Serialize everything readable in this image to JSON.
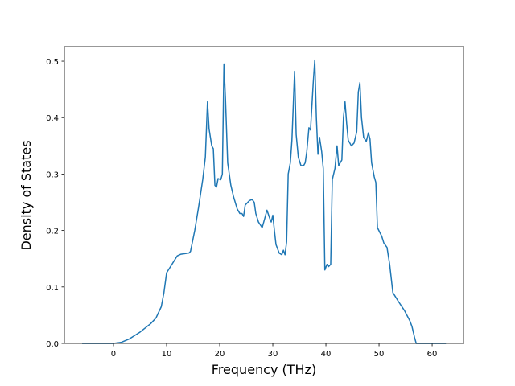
{
  "chart_data": {
    "type": "line",
    "xlabel": "Frequency (THz)",
    "ylabel": "Density of States",
    "xlim": [
      -9.24,
      65.9
    ],
    "ylim": [
      0,
      0.5257
    ],
    "xticks": [
      0,
      10,
      20,
      30,
      40,
      50,
      60
    ],
    "yticks": [
      {
        "value": 0,
        "label": "0.0"
      },
      {
        "value": 0.1,
        "label": "0.1"
      },
      {
        "value": 0.2,
        "label": "0.2"
      },
      {
        "value": 0.3,
        "label": "0.3"
      },
      {
        "value": 0.4,
        "label": "0.4"
      },
      {
        "value": 0.5,
        "label": "0.5"
      }
    ],
    "grid": false,
    "series": [
      {
        "color": "#1f77b4",
        "x": [
          -5.9,
          0,
          1.5,
          3,
          5,
          7,
          8,
          9,
          9.5,
          10,
          11,
          12,
          12.7,
          14.2,
          14.5,
          15.3,
          16,
          16.8,
          17.3,
          17.7,
          18,
          18.5,
          18.8,
          19.1,
          19.4,
          19.7,
          20.2,
          20.5,
          20.8,
          21.1,
          21.5,
          22.1,
          22.6,
          23.3,
          23.8,
          24.2,
          24.5,
          24.8,
          25.6,
          26.1,
          26.5,
          26.8,
          27.3,
          28,
          28.5,
          28.9,
          29.4,
          29.7,
          30,
          30.3,
          30.6,
          31.2,
          31.7,
          32,
          32.3,
          32.6,
          32.9,
          33.3,
          33.6,
          34.1,
          34.4,
          34.8,
          35.3,
          35.8,
          36.1,
          36.4,
          36.8,
          37.1,
          37.6,
          37.9,
          38.2,
          38.5,
          38.8,
          39.2,
          39.5,
          39.8,
          40.2,
          40.5,
          40.9,
          41.2,
          41.7,
          42.1,
          42.4,
          43,
          43.3,
          43.6,
          43.9,
          44.2,
          44.8,
          45.3,
          45.8,
          46.1,
          46.4,
          46.7,
          47.1,
          47.6,
          48,
          48.3,
          48.6,
          49.1,
          49.4,
          49.7,
          50.5,
          50.9,
          51.5,
          52,
          52.6,
          53.6,
          54.8,
          55.8,
          56.2,
          56.7,
          57,
          62.6
        ],
        "values": [
          0,
          0,
          0.002,
          0.008,
          0.02,
          0.035,
          0.045,
          0.065,
          0.09,
          0.125,
          0.14,
          0.155,
          0.158,
          0.16,
          0.163,
          0.2,
          0.24,
          0.29,
          0.33,
          0.428,
          0.38,
          0.35,
          0.345,
          0.28,
          0.277,
          0.292,
          0.29,
          0.3,
          0.495,
          0.43,
          0.32,
          0.28,
          0.26,
          0.238,
          0.23,
          0.23,
          0.225,
          0.245,
          0.253,
          0.255,
          0.25,
          0.23,
          0.215,
          0.205,
          0.222,
          0.236,
          0.222,
          0.215,
          0.227,
          0.2,
          0.175,
          0.16,
          0.157,
          0.165,
          0.157,
          0.18,
          0.3,
          0.32,
          0.36,
          0.482,
          0.37,
          0.33,
          0.315,
          0.315,
          0.32,
          0.34,
          0.382,
          0.378,
          0.46,
          0.502,
          0.4,
          0.335,
          0.365,
          0.34,
          0.31,
          0.13,
          0.14,
          0.136,
          0.14,
          0.29,
          0.31,
          0.35,
          0.315,
          0.325,
          0.4,
          0.428,
          0.39,
          0.36,
          0.35,
          0.355,
          0.375,
          0.445,
          0.462,
          0.4,
          0.365,
          0.358,
          0.373,
          0.362,
          0.32,
          0.295,
          0.285,
          0.205,
          0.19,
          0.178,
          0.17,
          0.14,
          0.09,
          0.075,
          0.058,
          0.04,
          0.03,
          0.01,
          0,
          0
        ]
      }
    ]
  }
}
